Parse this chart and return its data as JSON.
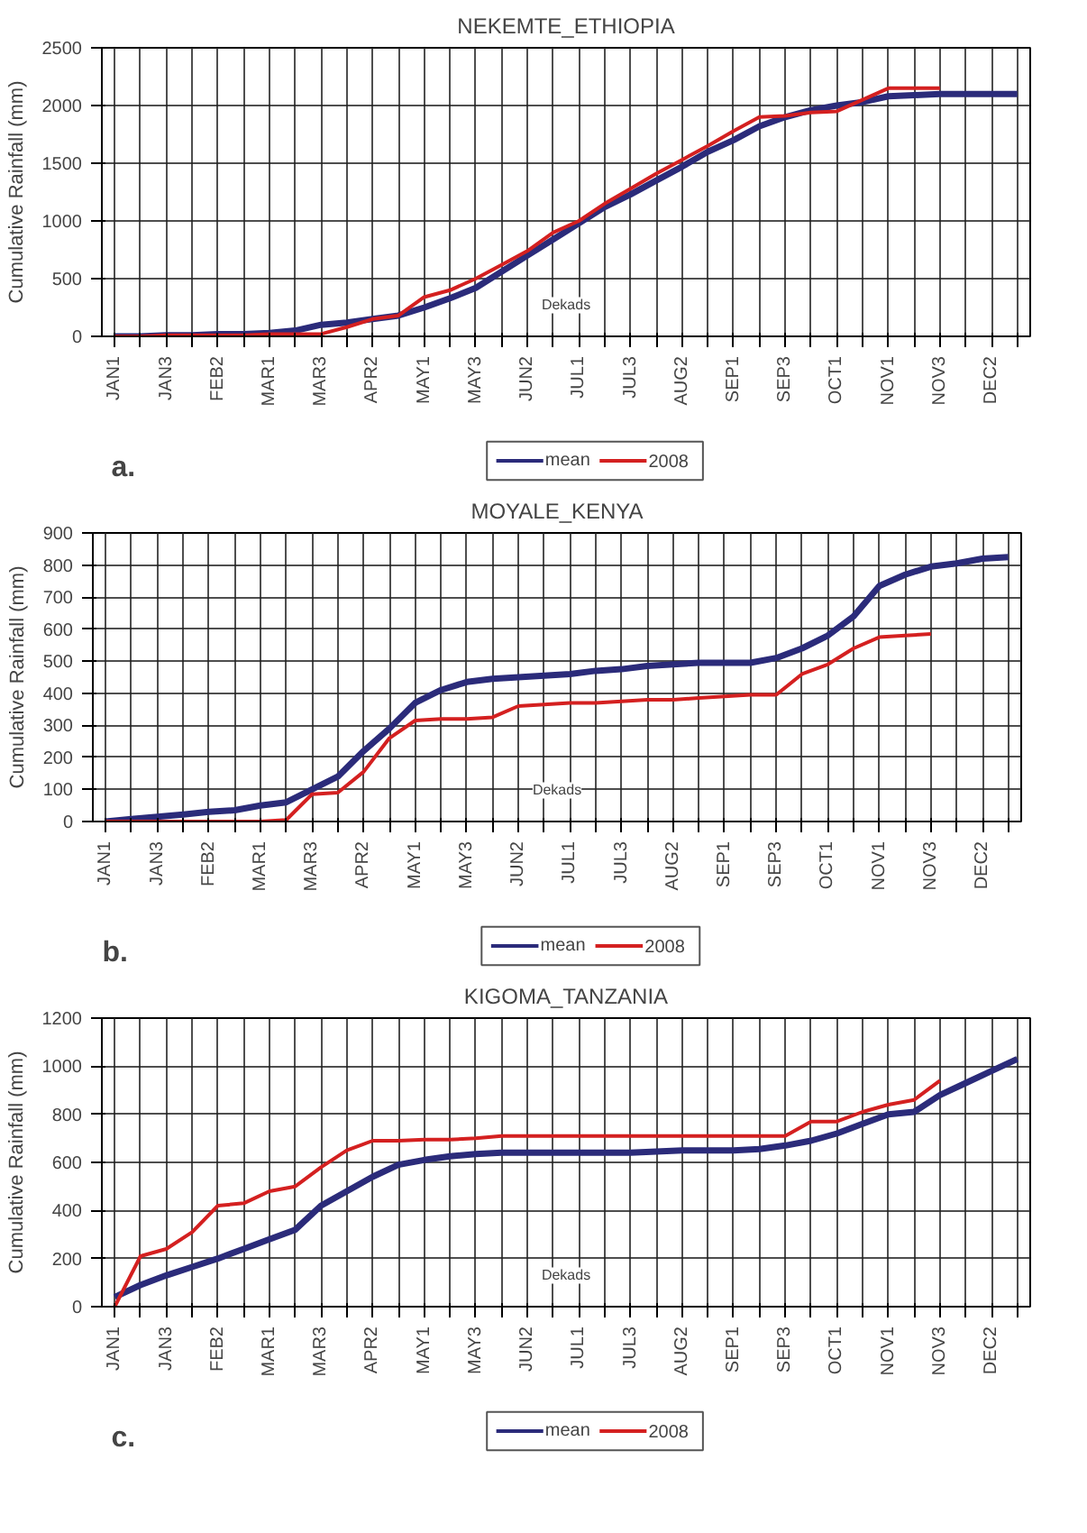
{
  "chart_data": [
    {
      "type": "line",
      "title": "NEKEMTE_ETHIOPIA",
      "ylabel": "Cumulative Rainfall (mm)",
      "xlabel": "Dekads",
      "annotations": [
        "a."
      ],
      "categories": [
        "JAN1",
        null,
        "JAN3",
        null,
        "FEB2",
        null,
        "MAR1",
        null,
        "MAR3",
        null,
        "APR2",
        null,
        "MAY1",
        null,
        "MAY3",
        null,
        "JUN2",
        null,
        "JUL1",
        null,
        "JUL3",
        null,
        "AUG2",
        null,
        "SEP1",
        null,
        "SEP3",
        null,
        "OCT1",
        null,
        "NOV1",
        null,
        "NOV3",
        null,
        "DEC2",
        null
      ],
      "ylim": [
        0,
        2500
      ],
      "yticks": [
        0,
        500,
        1000,
        1500,
        2000,
        2500
      ],
      "grid": true,
      "legend": "bottom",
      "line_style": "solid",
      "series": [
        {
          "name": "mean",
          "color": "#2b2b7a",
          "values": [
            0,
            0,
            10,
            10,
            20,
            20,
            30,
            50,
            100,
            120,
            150,
            180,
            250,
            330,
            420,
            560,
            700,
            840,
            980,
            1120,
            1230,
            1350,
            1470,
            1600,
            1700,
            1820,
            1900,
            1960,
            2000,
            2030,
            2080,
            2090,
            2100,
            2100,
            2100,
            2100
          ]
        },
        {
          "name": "2008",
          "color": "#d42020",
          "values": [
            0,
            0,
            10,
            10,
            10,
            10,
            20,
            20,
            20,
            80,
            150,
            180,
            340,
            400,
            500,
            620,
            740,
            900,
            1000,
            1150,
            1280,
            1410,
            1530,
            1650,
            1780,
            1900,
            1910,
            1940,
            1950,
            2050,
            2150,
            2150,
            2150,
            null,
            null,
            null
          ]
        }
      ]
    },
    {
      "type": "line",
      "title": "MOYALE_KENYA",
      "ylabel": "Cumulative Rainfall (mm)",
      "xlabel": "Dekads",
      "annotations": [
        "b."
      ],
      "categories": [
        "JAN1",
        null,
        "JAN3",
        null,
        "FEB2",
        null,
        "MAR1",
        null,
        "MAR3",
        null,
        "APR2",
        null,
        "MAY1",
        null,
        "MAY3",
        null,
        "JUN2",
        null,
        "JUL1",
        null,
        "JUL3",
        null,
        "AUG2",
        null,
        "SEP1",
        null,
        "SEP3",
        null,
        "OCT1",
        null,
        "NOV1",
        null,
        "NOV3",
        null,
        "DEC2",
        null
      ],
      "ylim": [
        0,
        900
      ],
      "yticks": [
        0,
        100,
        200,
        300,
        400,
        500,
        600,
        700,
        800,
        900
      ],
      "grid": true,
      "legend": "bottom",
      "line_style": "solid",
      "series": [
        {
          "name": "mean",
          "color": "#2b2b7a",
          "values": [
            0,
            8,
            15,
            22,
            30,
            35,
            50,
            60,
            100,
            140,
            220,
            290,
            370,
            410,
            435,
            445,
            450,
            455,
            460,
            470,
            475,
            485,
            490,
            495,
            495,
            495,
            510,
            540,
            580,
            640,
            735,
            770,
            795,
            805,
            820,
            825
          ]
        },
        {
          "name": "2008",
          "color": "#d42020",
          "values": [
            0,
            0,
            0,
            0,
            0,
            0,
            0,
            5,
            85,
            90,
            155,
            260,
            315,
            320,
            320,
            325,
            360,
            365,
            370,
            370,
            375,
            380,
            380,
            385,
            390,
            395,
            395,
            460,
            490,
            540,
            575,
            580,
            585,
            null,
            null,
            null
          ]
        }
      ]
    },
    {
      "type": "line",
      "title": "KIGOMA_TANZANIA",
      "ylabel": "Cumulative Rainfall (mm)",
      "xlabel": "Dekads",
      "annotations": [
        "c."
      ],
      "categories": [
        "JAN1",
        null,
        "JAN3",
        null,
        "FEB2",
        null,
        "MAR1",
        null,
        "MAR3",
        null,
        "APR2",
        null,
        "MAY1",
        null,
        "MAY3",
        null,
        "JUN2",
        null,
        "JUL1",
        null,
        "JUL3",
        null,
        "AUG2",
        null,
        "SEP1",
        null,
        "SEP3",
        null,
        "OCT1",
        null,
        "NOV1",
        null,
        "NOV3",
        null,
        "DEC2",
        null
      ],
      "ylim": [
        0,
        1200
      ],
      "yticks": [
        0,
        200,
        400,
        600,
        800,
        1000,
        1200
      ],
      "grid": true,
      "legend": "bottom",
      "line_style": "solid",
      "series": [
        {
          "name": "mean",
          "color": "#2b2b7a",
          "values": [
            40,
            90,
            130,
            165,
            200,
            240,
            280,
            320,
            420,
            480,
            540,
            590,
            610,
            625,
            635,
            640,
            640,
            640,
            640,
            640,
            640,
            645,
            650,
            650,
            650,
            655,
            670,
            690,
            720,
            760,
            800,
            810,
            880,
            930,
            980,
            1030
          ]
        },
        {
          "name": "2008",
          "color": "#d42020",
          "values": [
            0,
            210,
            240,
            310,
            420,
            430,
            480,
            500,
            580,
            650,
            690,
            690,
            695,
            695,
            700,
            710,
            710,
            710,
            710,
            710,
            710,
            710,
            710,
            710,
            710,
            710,
            710,
            770,
            770,
            810,
            840,
            860,
            940,
            null,
            null,
            null
          ]
        }
      ]
    }
  ]
}
